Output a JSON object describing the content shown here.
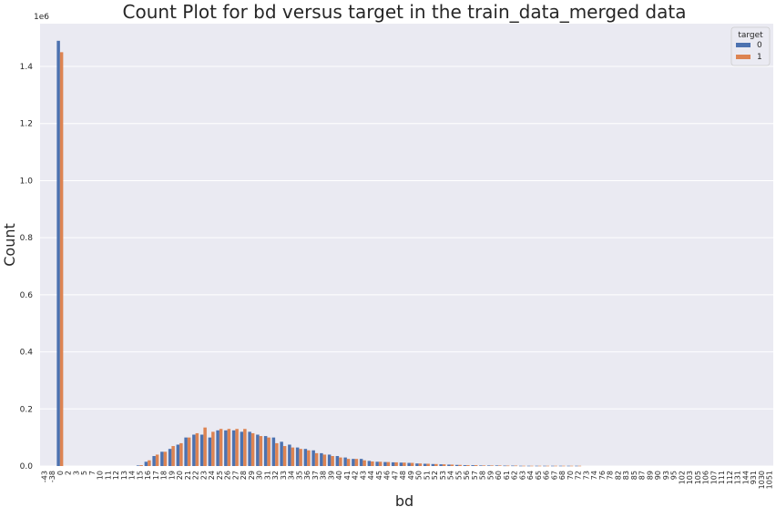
{
  "chart_data": {
    "type": "bar",
    "title": "Count Plot for bd versus target in the train_data_merged data",
    "xlabel": "bd",
    "ylabel": "Count",
    "y_offset_label": "1e6",
    "ylim": [
      0,
      1.55
    ],
    "yticks": [
      0.0,
      0.2,
      0.4,
      0.6,
      0.8,
      1.0,
      1.2,
      1.4
    ],
    "ytick_labels": [
      "0.0",
      "0.2",
      "0.4",
      "0.6",
      "0.8",
      "1.0",
      "1.2",
      "1.4"
    ],
    "grid": true,
    "legend": {
      "title": "target",
      "position": "top-right"
    },
    "categories": [
      "-43",
      "-38",
      "0",
      "2",
      "3",
      "5",
      "7",
      "10",
      "11",
      "12",
      "13",
      "14",
      "15",
      "16",
      "17",
      "18",
      "19",
      "20",
      "21",
      "22",
      "23",
      "24",
      "25",
      "26",
      "27",
      "28",
      "29",
      "30",
      "31",
      "32",
      "33",
      "34",
      "35",
      "36",
      "37",
      "38",
      "39",
      "40",
      "41",
      "42",
      "43",
      "44",
      "45",
      "46",
      "47",
      "48",
      "49",
      "50",
      "51",
      "52",
      "53",
      "54",
      "55",
      "56",
      "57",
      "58",
      "59",
      "60",
      "61",
      "62",
      "63",
      "64",
      "65",
      "66",
      "67",
      "68",
      "70",
      "72",
      "73",
      "74",
      "76",
      "78",
      "82",
      "83",
      "85",
      "87",
      "89",
      "90",
      "93",
      "95",
      "102",
      "103",
      "105",
      "106",
      "107",
      "111",
      "112",
      "131",
      "144",
      "931",
      "1030",
      "1051"
    ],
    "series": [
      {
        "name": "0",
        "color": "#4c72b0",
        "values": [
          0,
          0,
          1.49,
          0,
          0,
          0,
          0,
          0,
          0,
          0,
          0,
          0,
          0.002,
          0.015,
          0.035,
          0.05,
          0.06,
          0.075,
          0.1,
          0.11,
          0.11,
          0.1,
          0.125,
          0.125,
          0.125,
          0.12,
          0.12,
          0.11,
          0.105,
          0.1,
          0.085,
          0.075,
          0.065,
          0.06,
          0.055,
          0.045,
          0.04,
          0.035,
          0.03,
          0.025,
          0.025,
          0.018,
          0.015,
          0.014,
          0.013,
          0.012,
          0.011,
          0.009,
          0.008,
          0.007,
          0.006,
          0.005,
          0.004,
          0.003,
          0.003,
          0.002,
          0.002,
          0.002,
          0.0015,
          0.0015,
          0.001,
          0.001,
          0.001,
          0.001,
          0.001,
          0.001,
          0.001,
          0.001,
          0,
          0,
          0,
          0,
          0,
          0,
          0,
          0,
          0,
          0,
          0,
          0,
          0,
          0,
          0,
          0,
          0,
          0,
          0,
          0,
          0,
          0,
          0,
          0
        ]
      },
      {
        "name": "1",
        "color": "#dd8452",
        "values": [
          0,
          0,
          1.45,
          0,
          0,
          0,
          0,
          0,
          0,
          0,
          0,
          0,
          0.003,
          0.02,
          0.04,
          0.05,
          0.07,
          0.08,
          0.1,
          0.115,
          0.135,
          0.12,
          0.13,
          0.13,
          0.13,
          0.13,
          0.115,
          0.105,
          0.1,
          0.08,
          0.07,
          0.065,
          0.06,
          0.055,
          0.045,
          0.04,
          0.035,
          0.03,
          0.025,
          0.025,
          0.02,
          0.016,
          0.015,
          0.014,
          0.013,
          0.012,
          0.011,
          0.009,
          0.008,
          0.007,
          0.006,
          0.005,
          0.004,
          0.003,
          0.003,
          0.002,
          0.002,
          0.002,
          0.0015,
          0.0015,
          0.001,
          0.001,
          0.001,
          0.001,
          0.001,
          0.001,
          0.001,
          0.001,
          0,
          0,
          0,
          0,
          0,
          0,
          0,
          0,
          0,
          0,
          0,
          0,
          0,
          0,
          0,
          0,
          0,
          0,
          0,
          0,
          0,
          0,
          0,
          0
        ]
      }
    ]
  }
}
